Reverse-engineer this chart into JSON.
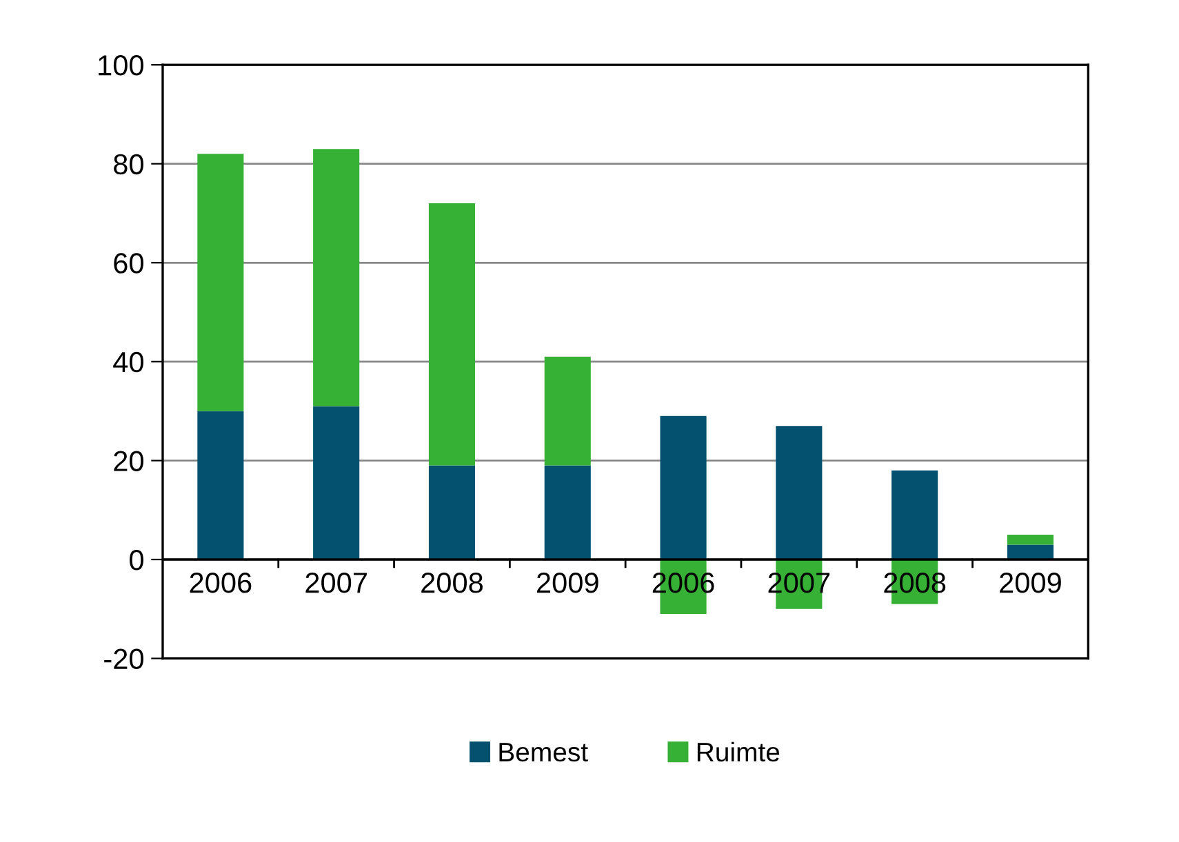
{
  "chart_data": {
    "type": "bar",
    "stacked": true,
    "categories": [
      "2006",
      "2007",
      "2008",
      "2009",
      "2006",
      "2007",
      "2008",
      "2009"
    ],
    "series": [
      {
        "name": "Bemest",
        "color": "#03506f",
        "values": [
          30,
          31,
          19,
          19,
          29,
          27,
          18,
          3
        ]
      },
      {
        "name": "Ruimte",
        "color": "#36b136",
        "values": [
          52,
          52,
          53,
          22,
          -11,
          -10,
          -9,
          2
        ]
      }
    ],
    "ylim": [
      -20,
      100
    ],
    "yticks": [
      -20,
      0,
      20,
      40,
      60,
      80,
      100
    ],
    "grid": "y",
    "legend": "bottom"
  }
}
